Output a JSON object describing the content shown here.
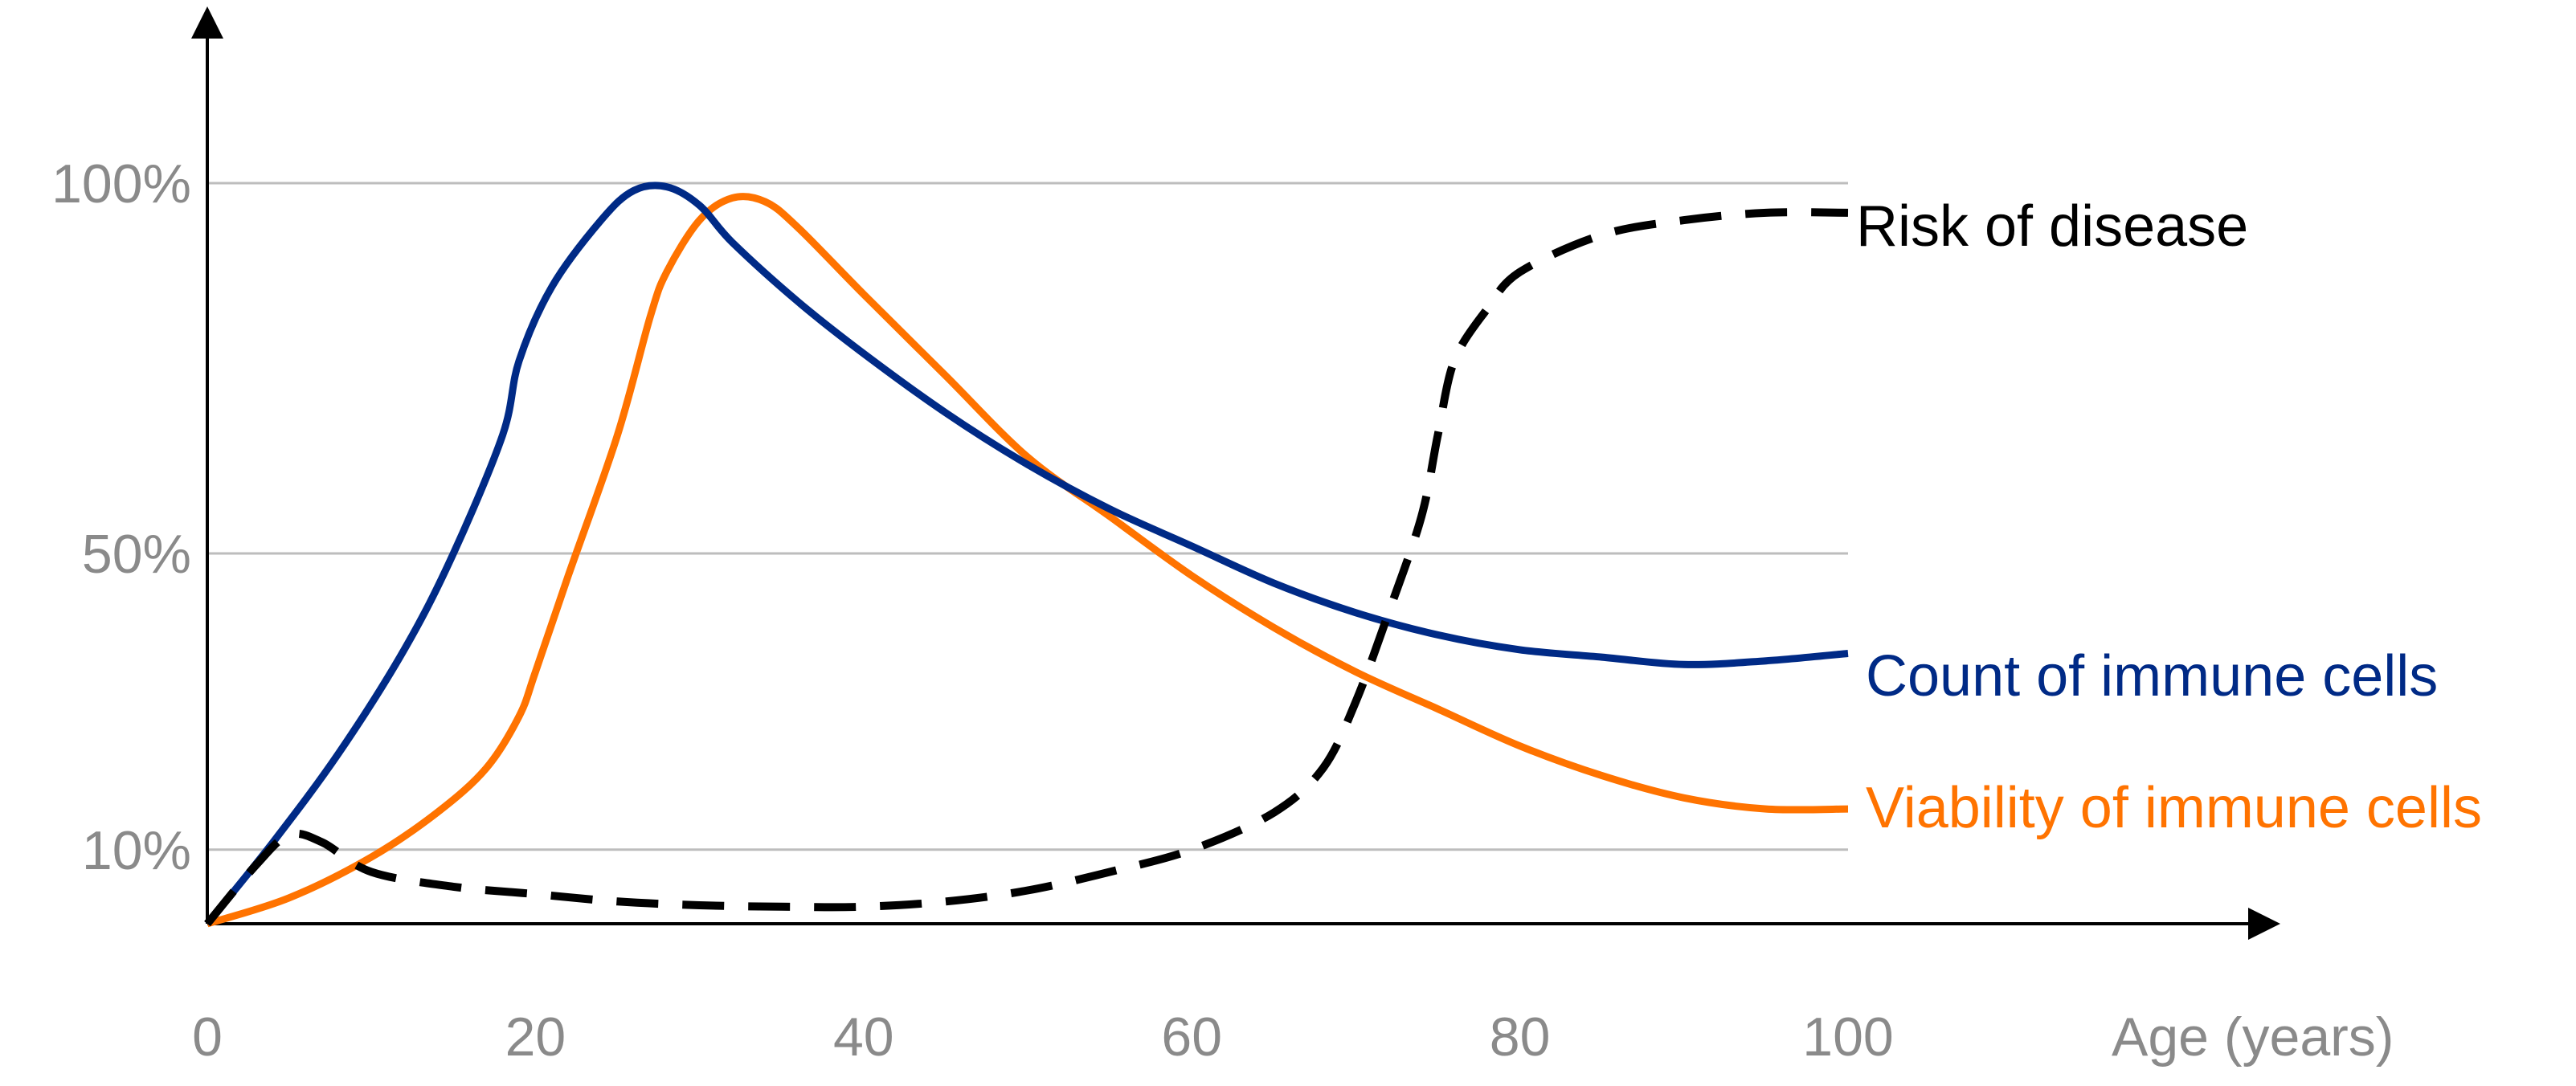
{
  "chart_data": {
    "type": "line",
    "title": "",
    "xlabel": "Age (years)",
    "ylabel": "",
    "xlim": [
      0,
      100
    ],
    "ylim": [
      0,
      100
    ],
    "x_ticks": [
      {
        "value": 0,
        "label": "0"
      },
      {
        "value": 20,
        "label": "20"
      },
      {
        "value": 40,
        "label": "40"
      },
      {
        "value": 60,
        "label": "60"
      },
      {
        "value": 80,
        "label": "80"
      },
      {
        "value": 100,
        "label": "100"
      }
    ],
    "y_ticks": [
      {
        "value": 10,
        "label": "10%"
      },
      {
        "value": 50,
        "label": "50%"
      },
      {
        "value": 100,
        "label": "100%"
      }
    ],
    "grid": {
      "horizontal": true,
      "vertical": false
    },
    "series": [
      {
        "name": "Count of immune cells",
        "color": "#002A86",
        "style": "solid",
        "points": [
          [
            0,
            0
          ],
          [
            4,
            11
          ],
          [
            8,
            23
          ],
          [
            12,
            37
          ],
          [
            15,
            50
          ],
          [
            18,
            66
          ],
          [
            19,
            76
          ],
          [
            21,
            86
          ],
          [
            24,
            95
          ],
          [
            26,
            99
          ],
          [
            28,
            99.5
          ],
          [
            30,
            97
          ],
          [
            32,
            92
          ],
          [
            36,
            84
          ],
          [
            40,
            77
          ],
          [
            45,
            69
          ],
          [
            50,
            62
          ],
          [
            55,
            56
          ],
          [
            60,
            51
          ],
          [
            65,
            46
          ],
          [
            70,
            42
          ],
          [
            75,
            39
          ],
          [
            80,
            37
          ],
          [
            85,
            36
          ],
          [
            90,
            35
          ],
          [
            95,
            35.5
          ],
          [
            100,
            36.5
          ]
        ]
      },
      {
        "name": "Viability of immune cells",
        "color": "#FF7300",
        "style": "solid",
        "points": [
          [
            0,
            0
          ],
          [
            5,
            3.5
          ],
          [
            10,
            9
          ],
          [
            14,
            15
          ],
          [
            17,
            21
          ],
          [
            19,
            28
          ],
          [
            20,
            34
          ],
          [
            22,
            47
          ],
          [
            25,
            66
          ],
          [
            27,
            82
          ],
          [
            28,
            88
          ],
          [
            30,
            95
          ],
          [
            32,
            98
          ],
          [
            34,
            97.5
          ],
          [
            36,
            94
          ],
          [
            40,
            85
          ],
          [
            45,
            74
          ],
          [
            50,
            63
          ],
          [
            55,
            55
          ],
          [
            60,
            47
          ],
          [
            65,
            40
          ],
          [
            70,
            34
          ],
          [
            75,
            29
          ],
          [
            80,
            24
          ],
          [
            85,
            20
          ],
          [
            90,
            17
          ],
          [
            95,
            15.5
          ],
          [
            100,
            15.5
          ]
        ]
      },
      {
        "name": "Risk of disease",
        "color": "#000000",
        "style": "dashed",
        "points": [
          [
            0,
            0
          ],
          [
            3,
            8
          ],
          [
            5,
            12
          ],
          [
            7,
            11
          ],
          [
            10,
            7
          ],
          [
            15,
            5
          ],
          [
            20,
            4
          ],
          [
            25,
            3
          ],
          [
            30,
            2.5
          ],
          [
            35,
            2.3
          ],
          [
            40,
            2.3
          ],
          [
            45,
            3
          ],
          [
            50,
            4.5
          ],
          [
            55,
            7
          ],
          [
            60,
            10
          ],
          [
            65,
            15
          ],
          [
            68,
            21
          ],
          [
            70,
            30
          ],
          [
            72,
            42
          ],
          [
            74,
            55
          ],
          [
            75,
            66
          ],
          [
            76,
            76
          ],
          [
            78,
            83
          ],
          [
            80,
            88
          ],
          [
            85,
            93
          ],
          [
            90,
            95
          ],
          [
            95,
            96
          ],
          [
            100,
            96
          ]
        ]
      }
    ],
    "legend": "inline labels at right end of each line"
  }
}
